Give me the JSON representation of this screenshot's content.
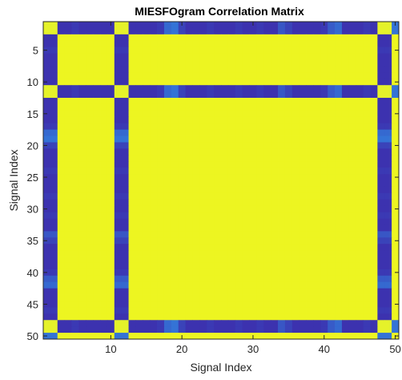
{
  "chart_data": {
    "type": "heatmap",
    "title": "MIESFOgram Correlation Matrix",
    "xlabel": "Signal Index",
    "ylabel": "Signal Index",
    "xlim": [
      0.5,
      50.5
    ],
    "ylim": [
      0.5,
      50.5
    ],
    "y_direction": "reverse",
    "xticks": [
      10,
      20,
      30,
      40,
      50
    ],
    "yticks": [
      5,
      10,
      15,
      20,
      25,
      30,
      35,
      40,
      45,
      50
    ],
    "size": 50,
    "colormap": "parula",
    "colors": {
      "low": "#3e26a8",
      "mid": "#2e9ef0",
      "high": "#f9fb14"
    },
    "low_correlation_indices": [
      1,
      2,
      11,
      12,
      48,
      49
    ],
    "low_band_values_by_index": [
      0.12,
      0.05,
      0.05,
      0.05,
      0.08,
      0.05,
      0.05,
      0.05,
      0.05,
      0.05,
      0.05,
      0.05,
      0.05,
      0.05,
      0.05,
      0.05,
      0.08,
      0.28,
      0.32,
      0.12,
      0.05,
      0.05,
      0.05,
      0.08,
      0.05,
      0.05,
      0.05,
      0.08,
      0.05,
      0.05,
      0.08,
      0.05,
      0.05,
      0.2,
      0.12,
      0.05,
      0.05,
      0.05,
      0.05,
      0.08,
      0.22,
      0.28,
      0.05,
      0.05,
      0.05,
      0.08,
      0.05,
      0.05,
      0.05,
      0.32
    ],
    "low_band_crossing_value": 0.95,
    "high_region_value": 0.97
  }
}
